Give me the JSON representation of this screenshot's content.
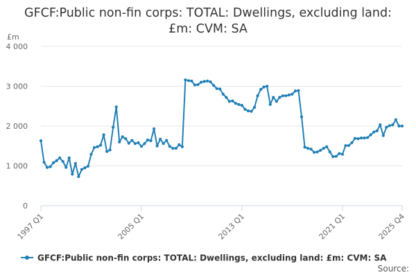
{
  "chart_data": {
    "type": "line",
    "title": "GFCF:Public non-fin corps: TOTAL: Dwellings, excluding land: £m: CVM: SA",
    "unit_label": "£m",
    "xlabel": "",
    "ylabel": "",
    "ylim": [
      0,
      4000
    ],
    "yticks": [
      "0",
      "1 000",
      "2 000",
      "3 000",
      "4 000"
    ],
    "ytick_values": [
      0,
      1000,
      2000,
      3000,
      4000
    ],
    "xticks": [
      {
        "label": "1997 Q1",
        "index": 0
      },
      {
        "label": "2005 Q1",
        "index": 32
      },
      {
        "label": "2013 Q1",
        "index": 64
      },
      {
        "label": "2021 Q1",
        "index": 96
      },
      {
        "label": "2025 Q4",
        "index": 115
      }
    ],
    "x_start": "1997 Q1",
    "x_end": "2025 Q4",
    "grid": true,
    "legend_position": "bottom",
    "series": [
      {
        "name": "GFCF:Public non-fin corps: TOTAL: Dwellings, excluding land: £m: CVM: SA",
        "color": "#1f7fb5",
        "values": [
          1630,
          1090,
          960,
          980,
          1080,
          1130,
          1200,
          1110,
          960,
          1200,
          790,
          1060,
          730,
          910,
          950,
          990,
          1290,
          1460,
          1480,
          1520,
          1780,
          1360,
          1400,
          1970,
          2480,
          1600,
          1730,
          1680,
          1570,
          1640,
          1560,
          1580,
          1490,
          1560,
          1650,
          1630,
          1930,
          1500,
          1670,
          1560,
          1640,
          1490,
          1440,
          1440,
          1530,
          1480,
          3160,
          3140,
          3130,
          3030,
          3040,
          3100,
          3120,
          3130,
          3110,
          3020,
          2940,
          2930,
          2800,
          2720,
          2620,
          2630,
          2570,
          2540,
          2520,
          2420,
          2380,
          2370,
          2470,
          2760,
          2920,
          2980,
          3000,
          2540,
          2720,
          2620,
          2720,
          2760,
          2760,
          2780,
          2800,
          2880,
          2890,
          2230,
          1470,
          1440,
          1420,
          1340,
          1350,
          1390,
          1440,
          1480,
          1350,
          1230,
          1240,
          1310,
          1290,
          1510,
          1510,
          1580,
          1690,
          1680,
          1700,
          1700,
          1710,
          1780,
          1850,
          1880,
          2030,
          1760,
          1970,
          2010,
          2030,
          2160,
          2000,
          2000
        ]
      }
    ]
  },
  "legend_label": "GFCF:Public non-fin corps: TOTAL: Dwellings, excluding land: £m: CVM: SA",
  "source_label": "Source:"
}
